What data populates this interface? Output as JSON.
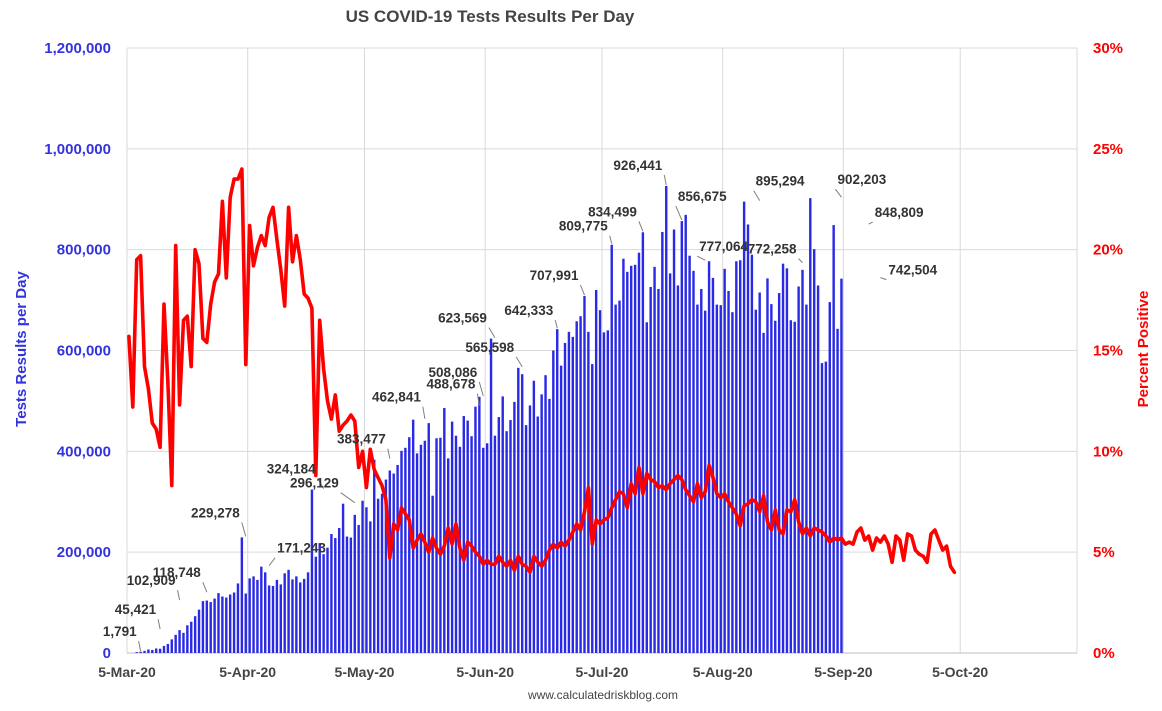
{
  "chart_data": {
    "type": "bar",
    "title": "US COVID-19 Tests Results Per Day",
    "ylabel": "Tests Results per Day",
    "y2label": "Percent Positive",
    "source": "www.calculatedriskblog.com",
    "ylim": [
      0,
      1200000
    ],
    "y2lim": [
      0,
      30
    ],
    "yticks": [
      "0",
      "200,000",
      "400,000",
      "600,000",
      "800,000",
      "1,000,000",
      "1,200,000"
    ],
    "y2ticks": [
      "0%",
      "5%",
      "10%",
      "15%",
      "20%",
      "25%",
      "30%"
    ],
    "xticks": [
      "5-Mar-20",
      "5-Apr-20",
      "5-May-20",
      "5-Jun-20",
      "5-Jul-20",
      "5-Aug-20",
      "5-Sep-20",
      "5-Oct-20"
    ],
    "xlim": [
      "2020-03-05",
      "2020-11-04"
    ],
    "grid": true,
    "colors": {
      "bars": "#2a2ae6",
      "line": "#ff0000",
      "left_axis": "#3333dd",
      "right_axis": "#ff0000"
    },
    "annotations": [
      {
        "date": "2020-03-08",
        "value": 1791,
        "label": "1,791"
      },
      {
        "date": "2020-03-13",
        "value": 45421,
        "label": "45,421"
      },
      {
        "date": "2020-03-18",
        "value": 102909,
        "label": "102,909"
      },
      {
        "date": "2020-03-25",
        "value": 118748,
        "label": "118,748"
      },
      {
        "date": "2020-04-04",
        "value": 229278,
        "label": "229,278"
      },
      {
        "date": "2020-04-10",
        "value": 171243,
        "label": "171,243"
      },
      {
        "date": "2020-04-24",
        "value": 324184,
        "label": "324,184"
      },
      {
        "date": "2020-05-02",
        "value": 296129,
        "label": "296,129"
      },
      {
        "date": "2020-05-11",
        "value": 383477,
        "label": "383,477"
      },
      {
        "date": "2020-05-20",
        "value": 462841,
        "label": "462,841"
      },
      {
        "date": "2020-06-03",
        "value": 488678,
        "label": "488,678"
      },
      {
        "date": "2020-06-04",
        "value": 508086,
        "label": "508,086"
      },
      {
        "date": "2020-06-07",
        "value": 623569,
        "label": "623,569"
      },
      {
        "date": "2020-06-14",
        "value": 565598,
        "label": "565,598"
      },
      {
        "date": "2020-06-23",
        "value": 642333,
        "label": "642,333"
      },
      {
        "date": "2020-06-30",
        "value": 707991,
        "label": "707,991"
      },
      {
        "date": "2020-07-07",
        "value": 809775,
        "label": "809,775"
      },
      {
        "date": "2020-07-15",
        "value": 834499,
        "label": "834,499"
      },
      {
        "date": "2020-07-21",
        "value": 926441,
        "label": "926,441"
      },
      {
        "date": "2020-07-25",
        "value": 856675,
        "label": "856,675"
      },
      {
        "date": "2020-07-31",
        "value": 777064,
        "label": "777,064"
      },
      {
        "date": "2020-08-14",
        "value": 895294,
        "label": "895,294"
      },
      {
        "date": "2020-08-25",
        "value": 772258,
        "label": "772,258"
      },
      {
        "date": "2020-09-04",
        "value": 902203,
        "label": "902,203"
      },
      {
        "date": "2020-09-11",
        "value": 848809,
        "label": "848,809"
      },
      {
        "date": "2020-09-14",
        "value": 742504,
        "label": "742,504"
      }
    ],
    "series": [
      {
        "type": "bar",
        "axis": "left",
        "start_date": "2020-03-07",
        "values": [
          1791,
          2500,
          4200,
          7000,
          6000,
          9000,
          8500,
          14000,
          18000,
          27000,
          36000,
          45421,
          40000,
          55000,
          62000,
          73000,
          86000,
          102909,
          104000,
          101000,
          108000,
          118748,
          112000,
          110000,
          116000,
          120000,
          138000,
          229278,
          118000,
          148000,
          152000,
          145000,
          171243,
          160000,
          134000,
          133000,
          145000,
          136000,
          158000,
          165000,
          146000,
          152000,
          140000,
          147000,
          160000,
          324184,
          191000,
          218000,
          196000,
          209000,
          236000,
          228000,
          248000,
          296129,
          231000,
          229000,
          274000,
          254000,
          302000,
          289000,
          261000,
          383477,
          306000,
          316000,
          344000,
          362000,
          356000,
          373000,
          401000,
          407000,
          428000,
          462841,
          396000,
          413000,
          421000,
          456000,
          312000,
          426000,
          427000,
          486000,
          386000,
          459000,
          431000,
          409000,
          470000,
          461000,
          430000,
          488678,
          508086,
          407000,
          416000,
          623569,
          431000,
          468000,
          509000,
          440000,
          462000,
          498000,
          565598,
          553000,
          452000,
          491000,
          540000,
          469000,
          513000,
          551000,
          504000,
          600000,
          642333,
          570000,
          615000,
          637000,
          627000,
          658000,
          668000,
          707991,
          637000,
          573000,
          720000,
          680000,
          636000,
          640000,
          809775,
          691000,
          699000,
          782000,
          756000,
          768000,
          770000,
          794000,
          834499,
          656000,
          726000,
          766000,
          722000,
          835000,
          926441,
          753000,
          840000,
          729000,
          856675,
          869000,
          788000,
          758000,
          691000,
          722000,
          679000,
          777064,
          744000,
          691000,
          690000,
          762000,
          718000,
          676000,
          777000,
          779000,
          895294,
          850000,
          790000,
          681000,
          715000,
          635000,
          743000,
          692000,
          659000,
          714000,
          772258,
          763000,
          660000,
          657000,
          727000,
          760000,
          691000,
          902203,
          801000,
          729000,
          575000,
          578000,
          696000,
          848809,
          643000,
          742504
        ]
      },
      {
        "type": "line",
        "axis": "right",
        "unit": "%",
        "start_date": "2020-03-05",
        "values": [
          15.7,
          12.2,
          19.5,
          19.7,
          14.2,
          13.1,
          11.4,
          11.1,
          10.2,
          17.3,
          13.4,
          8.3,
          20.2,
          12.3,
          16.5,
          16.7,
          14.2,
          20.0,
          19.3,
          15.6,
          15.4,
          17.3,
          18.4,
          18.8,
          22.4,
          18.6,
          22.6,
          23.5,
          23.5,
          24.0,
          14.3,
          21.2,
          19.2,
          20.1,
          20.7,
          20.2,
          21.6,
          22.1,
          20.5,
          19.0,
          17.2,
          22.1,
          19.4,
          20.7,
          19.5,
          17.8,
          17.6,
          17.1,
          8.8,
          16.5,
          14.1,
          12.5,
          11.6,
          12.8,
          11.0,
          11.3,
          11.5,
          11.8,
          11.5,
          9.2,
          10.0,
          8.2,
          10.1,
          9.1,
          8.7,
          8.3,
          7.6,
          4.7,
          6.4,
          6.1,
          7.2,
          6.9,
          6.6,
          5.2,
          5.6,
          5.9,
          5.5,
          5.0,
          5.7,
          5.2,
          4.9,
          5.3,
          6.2,
          5.4,
          6.4,
          5.2,
          4.6,
          5.5,
          5.3,
          5.0,
          4.8,
          4.4,
          4.6,
          4.4,
          4.4,
          4.8,
          4.5,
          4.3,
          4.6,
          4.1,
          4.8,
          4.4,
          4.3,
          4.0,
          4.8,
          4.5,
          4.3,
          4.6,
          5.1,
          5.4,
          5.2,
          5.5,
          5.3,
          5.6,
          6.0,
          6.4,
          6.1,
          7.0,
          8.2,
          5.4,
          6.6,
          6.4,
          6.6,
          6.7,
          7.2,
          7.6,
          8.0,
          7.9,
          7.2,
          8.4,
          7.9,
          9.2,
          7.9,
          8.9,
          8.6,
          8.5,
          8.2,
          8.3,
          8.1,
          8.4,
          8.6,
          8.8,
          8.6,
          8.1,
          7.8,
          7.5,
          8.4,
          7.7,
          8.0,
          9.3,
          8.7,
          7.9,
          7.7,
          7.9,
          7.5,
          7.2,
          6.9,
          6.3,
          7.3,
          7.4,
          7.6,
          7.5,
          7.0,
          7.8,
          6.5,
          6.1,
          7.1,
          6.1,
          5.9,
          7.1,
          7.0,
          7.6,
          6.5,
          5.9,
          6.2,
          5.8,
          6.2,
          6.1,
          6.0,
          5.8,
          5.5,
          5.7,
          5.6,
          5.7,
          5.4,
          5.5,
          5.4,
          6.0,
          6.2,
          5.6,
          5.8,
          5.1,
          5.7,
          5.5,
          5.8,
          5.4,
          4.5,
          5.8,
          5.6,
          4.6,
          5.9,
          5.8,
          5.1,
          4.9,
          4.8,
          4.5,
          5.9,
          6.1,
          5.6,
          5.1,
          5.3,
          4.3,
          4.0
        ]
      }
    ]
  }
}
